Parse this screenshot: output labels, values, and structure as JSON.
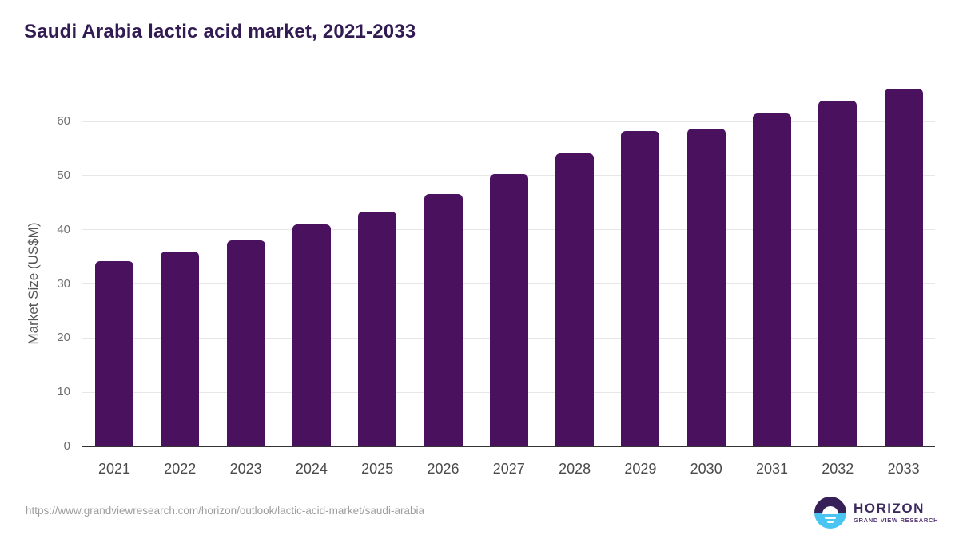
{
  "chart_data": {
    "type": "bar",
    "title": "Saudi Arabia lactic acid market, 2021-2033",
    "categories": [
      "2021",
      "2022",
      "2023",
      "2024",
      "2025",
      "2026",
      "2027",
      "2028",
      "2029",
      "2030",
      "2031",
      "2032",
      "2033"
    ],
    "values": [
      34.2,
      36.0,
      38.1,
      41.0,
      43.3,
      46.6,
      50.2,
      54.1,
      58.3,
      58.7,
      61.5,
      63.8,
      66.1
    ],
    "xlabel": "",
    "ylabel": "Market Size (US$M)",
    "yticks": [
      0,
      10,
      20,
      30,
      40,
      50,
      60
    ],
    "ylim": [
      0,
      67
    ],
    "grid": true,
    "legend": "none",
    "bar_color": "#4a115f"
  },
  "colors": {
    "background": "#ffffff",
    "title_text": "#321b52",
    "bar_fill": "#4a115f",
    "gridline": "#e7e7e7",
    "axis_line": "#333333",
    "ytick_text": "#6e6e6e",
    "xtick_text": "#4a4a4a",
    "url_text": "#9e9e9e",
    "logo_purple": "#372057",
    "logo_blue": "#4ac4f0"
  },
  "footer": {
    "source_url": "https://www.grandviewresearch.com/horizon/outlook/lactic-acid-market/saudi-arabia",
    "logo": {
      "name": "HORIZON",
      "tagline": "GRAND VIEW RESEARCH",
      "icon": "sun-over-horizon-icon"
    }
  }
}
